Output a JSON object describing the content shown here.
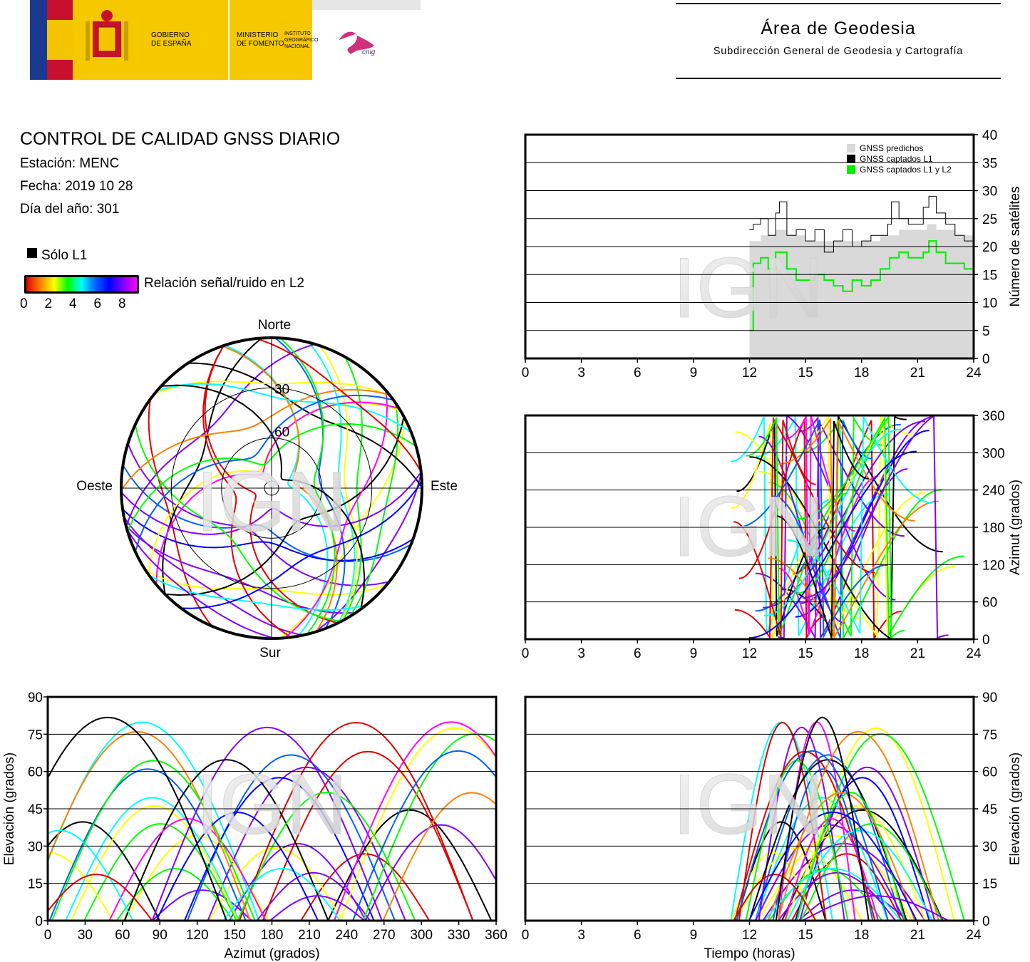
{
  "header": {
    "gobierno": "GOBIERNO\nDE ESPAÑA",
    "ministerio": "MINISTERIO\nDE FOMENTO",
    "instituto": "INSTITUTO\nGEOGRÁFICO\nNACIONAL",
    "cnig": "cnig",
    "area_title": "Área de Geodesia",
    "area_subtitle": "Subdirección General de Geodesia y Cartografía"
  },
  "info": {
    "title": "CONTROL DE CALIDAD GNSS DIARIO",
    "station": "Estación: MENC",
    "date": "Fecha: 2019 10 28",
    "doy": "Día del año: 301"
  },
  "legend": {
    "l1_only": "Sólo L1",
    "snr_label": "Relación señal/ruido en L2",
    "snr_ticks": [
      "0",
      "2",
      "4",
      "6",
      "8"
    ],
    "snr_colors": [
      "#e00000",
      "#ff8000",
      "#ffff00",
      "#00ff00",
      "#00ffff",
      "#0060ff",
      "#0000ff",
      "#8000ff",
      "#ff00ff"
    ],
    "l1_color": "#000000"
  },
  "watermark": "IGN",
  "chart_data": [
    {
      "id": "satellite_count",
      "type": "step",
      "xlabel": "",
      "ylabel": "Número de satélites",
      "xlim": [
        0,
        24
      ],
      "ylim": [
        0,
        40
      ],
      "xticks": [
        "0",
        "3",
        "6",
        "9",
        "12",
        "15",
        "18",
        "21",
        "24"
      ],
      "yticks": [
        "0",
        "5",
        "10",
        "15",
        "20",
        "25",
        "30",
        "35",
        "40"
      ],
      "grid": "horizontal",
      "legend_position": "top-right",
      "series": [
        {
          "name": "GNSS predichos",
          "color": "#d9d9d9",
          "x": [
            12,
            12.6,
            13.4,
            14,
            15,
            16,
            17,
            18,
            19,
            20,
            21,
            21.5,
            22,
            23,
            24
          ],
          "y": [
            21,
            22,
            23,
            22,
            21,
            21,
            21,
            21,
            22,
            23,
            23,
            24,
            23,
            22,
            21
          ]
        },
        {
          "name": "GNSS captados L1",
          "color": "#000000",
          "x": [
            12,
            12.2,
            12.6,
            13,
            13.4,
            13.6,
            14,
            14.5,
            15,
            15.5,
            16,
            16.5,
            17,
            17.5,
            18,
            18.5,
            19,
            19.4,
            19.6,
            20,
            20.5,
            21,
            21.3,
            21.6,
            22,
            22.5,
            23,
            23.5,
            24
          ],
          "y": [
            23,
            24,
            25,
            22,
            26,
            28,
            22,
            23,
            21,
            23,
            19,
            21,
            23,
            20,
            21,
            22,
            22,
            24,
            28,
            25,
            24,
            24,
            27,
            29,
            26,
            24,
            22,
            21,
            20
          ]
        },
        {
          "name": "GNSS captados L1 y L2",
          "color": "#00ee00",
          "x": [
            12,
            12.2,
            12.6,
            13,
            13.4,
            14,
            14.5,
            15,
            15.5,
            16,
            16.5,
            17,
            17.5,
            18,
            18.5,
            19,
            19.5,
            20,
            20.5,
            21,
            21.3,
            21.6,
            22,
            22.5,
            23,
            23.5,
            24
          ],
          "y": [
            5,
            17,
            18,
            16,
            19,
            16,
            14,
            14,
            15,
            14,
            13,
            12,
            14,
            13,
            14,
            16,
            18,
            19,
            18,
            18,
            19,
            21,
            19,
            17,
            17,
            16,
            16
          ]
        }
      ]
    },
    {
      "id": "azimuth_time",
      "type": "scatter",
      "xlabel": "",
      "ylabel": "Azimut (grados)",
      "xlim": [
        0,
        24
      ],
      "ylim": [
        0,
        360
      ],
      "xticks": [
        "0",
        "3",
        "6",
        "9",
        "12",
        "15",
        "18",
        "21",
        "24"
      ],
      "yticks": [
        "0",
        "60",
        "120",
        "180",
        "240",
        "300",
        "360"
      ],
      "grid": "horizontal"
    },
    {
      "id": "elevation_azimuth",
      "type": "scatter",
      "xlabel": "Azimut (grados)",
      "ylabel": "Elevación (grados)",
      "xlim": [
        0,
        360
      ],
      "ylim": [
        0,
        90
      ],
      "xticks": [
        "0",
        "30",
        "60",
        "90",
        "120",
        "150",
        "180",
        "210",
        "240",
        "270",
        "300",
        "330",
        "360"
      ],
      "yticks": [
        "0",
        "15",
        "30",
        "45",
        "60",
        "75",
        "90"
      ],
      "grid": "horizontal"
    },
    {
      "id": "elevation_time",
      "type": "scatter",
      "xlabel": "Tiempo (horas)",
      "ylabel": "Elevación (grados)",
      "xlim": [
        0,
        24
      ],
      "ylim": [
        0,
        90
      ],
      "xticks": [
        "0",
        "3",
        "6",
        "9",
        "12",
        "15",
        "18",
        "21",
        "24"
      ],
      "yticks": [
        "0",
        "15",
        "30",
        "45",
        "60",
        "75",
        "90"
      ],
      "grid": "horizontal"
    },
    {
      "id": "skyplot",
      "type": "polar",
      "labels": {
        "north": "Norte",
        "south": "Sur",
        "east": "Este",
        "west": "Oeste"
      },
      "rings": [
        "30",
        "60"
      ]
    }
  ]
}
